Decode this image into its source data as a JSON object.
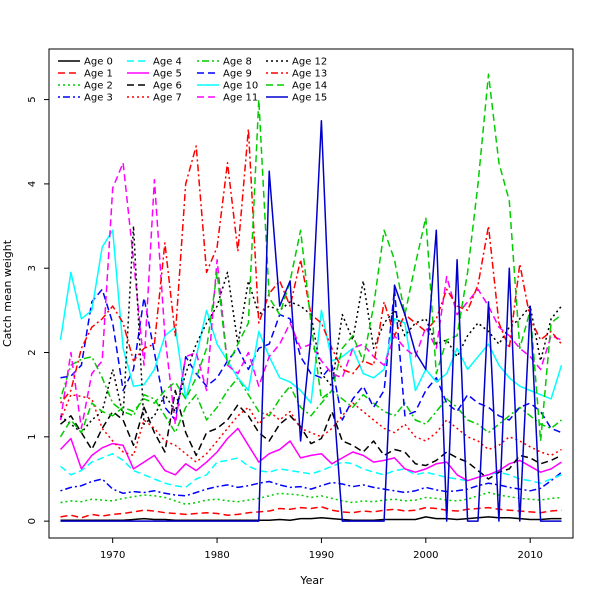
{
  "chart_data": {
    "type": "line",
    "title": "",
    "xlabel": "Year",
    "ylabel": "Catch mean weight",
    "xlim": [
      1963.9,
      2014.1
    ],
    "ylim": [
      -0.2,
      5.6
    ],
    "x_ticks": [
      1970,
      1980,
      1990,
      2000,
      2010
    ],
    "y_ticks": [
      0,
      1,
      2,
      3,
      4,
      5
    ],
    "legend_position": "top-left",
    "grid": false,
    "x": [
      1965,
      1966,
      1967,
      1968,
      1969,
      1970,
      1971,
      1972,
      1973,
      1974,
      1975,
      1976,
      1977,
      1978,
      1979,
      1980,
      1981,
      1982,
      1983,
      1984,
      1985,
      1986,
      1987,
      1988,
      1989,
      1990,
      1991,
      1992,
      1993,
      1994,
      1995,
      1996,
      1997,
      1998,
      1999,
      2000,
      2001,
      2002,
      2003,
      2004,
      2005,
      2006,
      2007,
      2008,
      2009,
      2010,
      2011,
      2012,
      2013
    ],
    "series": [
      {
        "name": "Age 0",
        "color": "#000000",
        "dash": "solid",
        "values": [
          0.01,
          0.01,
          0.01,
          0.01,
          0.01,
          0.01,
          0.01,
          0.02,
          0.03,
          0.02,
          0.02,
          0.01,
          0.01,
          0.01,
          0.01,
          0.01,
          0.01,
          0.01,
          0.01,
          0.01,
          0.01,
          0.02,
          0.01,
          0.03,
          0.03,
          0.04,
          0.03,
          0.02,
          0.01,
          0.01,
          0.01,
          0.02,
          0.02,
          0.02,
          0.02,
          0.05,
          0.03,
          0.03,
          0.02,
          0.03,
          0.04,
          0.05,
          0.04,
          0.04,
          0.03,
          0.02,
          0.02,
          0.03,
          0.03
        ]
      },
      {
        "name": "Age 1",
        "color": "#ff0000",
        "dash": "dashed",
        "values": [
          0.05,
          0.07,
          0.04,
          0.08,
          0.06,
          0.08,
          0.09,
          0.11,
          0.13,
          0.12,
          0.1,
          0.09,
          0.08,
          0.09,
          0.1,
          0.09,
          0.07,
          0.08,
          0.1,
          0.11,
          0.12,
          0.15,
          0.14,
          0.16,
          0.15,
          0.17,
          0.13,
          0.11,
          0.1,
          0.12,
          0.11,
          0.13,
          0.14,
          0.12,
          0.13,
          0.16,
          0.15,
          0.13,
          0.12,
          0.14,
          0.15,
          0.16,
          0.14,
          0.13,
          0.12,
          0.11,
          0.1,
          0.12,
          0.13
        ]
      },
      {
        "name": "Age 2",
        "color": "#00cd00",
        "dash": "dotted",
        "values": [
          0.22,
          0.24,
          0.23,
          0.26,
          0.25,
          0.24,
          0.27,
          0.29,
          0.31,
          0.3,
          0.28,
          0.24,
          0.2,
          0.22,
          0.25,
          0.26,
          0.24,
          0.23,
          0.25,
          0.27,
          0.3,
          0.33,
          0.32,
          0.31,
          0.28,
          0.3,
          0.27,
          0.24,
          0.22,
          0.24,
          0.23,
          0.25,
          0.26,
          0.24,
          0.25,
          0.28,
          0.27,
          0.25,
          0.24,
          0.26,
          0.3,
          0.34,
          0.31,
          0.29,
          0.27,
          0.26,
          0.25,
          0.27,
          0.28
        ]
      },
      {
        "name": "Age 3",
        "color": "#0000ff",
        "dash": "dashdot",
        "values": [
          0.36,
          0.4,
          0.42,
          0.47,
          0.5,
          0.38,
          0.33,
          0.35,
          0.34,
          0.36,
          0.33,
          0.31,
          0.3,
          0.34,
          0.38,
          0.41,
          0.43,
          0.4,
          0.42,
          0.45,
          0.47,
          0.43,
          0.4,
          0.41,
          0.38,
          0.42,
          0.46,
          0.44,
          0.41,
          0.43,
          0.4,
          0.38,
          0.36,
          0.34,
          0.36,
          0.4,
          0.37,
          0.35,
          0.36,
          0.38,
          0.42,
          0.45,
          0.43,
          0.4,
          0.38,
          0.36,
          0.39,
          0.48,
          0.58
        ]
      },
      {
        "name": "Age 4",
        "color": "#00ffff",
        "dash": "dashed",
        "values": [
          0.65,
          0.55,
          0.6,
          0.7,
          0.75,
          0.8,
          0.72,
          0.6,
          0.55,
          0.5,
          0.45,
          0.42,
          0.4,
          0.5,
          0.55,
          0.7,
          0.72,
          0.75,
          0.65,
          0.6,
          0.58,
          0.62,
          0.6,
          0.58,
          0.56,
          0.6,
          0.65,
          0.7,
          0.68,
          0.62,
          0.58,
          0.55,
          0.6,
          0.62,
          0.55,
          0.58,
          0.55,
          0.52,
          0.5,
          0.48,
          0.52,
          0.55,
          0.58,
          0.55,
          0.5,
          0.48,
          0.45,
          0.5,
          0.55
        ]
      },
      {
        "name": "Age 5",
        "color": "#ff00ff",
        "dash": "solid",
        "values": [
          0.85,
          0.98,
          0.62,
          0.78,
          0.87,
          0.92,
          0.9,
          0.62,
          0.7,
          0.78,
          0.6,
          0.55,
          0.68,
          0.6,
          0.7,
          0.82,
          0.98,
          1.1,
          0.9,
          0.7,
          0.8,
          0.85,
          0.95,
          0.75,
          0.78,
          0.8,
          0.68,
          0.75,
          0.82,
          0.78,
          0.7,
          0.72,
          0.75,
          0.62,
          0.58,
          0.62,
          0.68,
          0.7,
          0.55,
          0.48,
          0.52,
          0.55,
          0.6,
          0.68,
          0.72,
          0.65,
          0.58,
          0.62,
          0.7
        ]
      },
      {
        "name": "Age 6",
        "color": "#000000",
        "dash": "dashed",
        "values": [
          1.15,
          1.25,
          1.05,
          0.85,
          1.1,
          1.3,
          1.2,
          0.9,
          1.35,
          1.05,
          0.82,
          1.55,
          1.05,
          0.78,
          1.05,
          1.1,
          1.2,
          1.38,
          1.25,
          1.05,
          0.95,
          1.15,
          1.25,
          1.12,
          0.92,
          0.98,
          1.3,
          0.95,
          0.9,
          0.82,
          0.95,
          0.78,
          0.85,
          0.82,
          0.68,
          0.66,
          0.72,
          0.82,
          0.75,
          0.7,
          0.6,
          0.5,
          0.58,
          0.62,
          0.78,
          0.75,
          0.68,
          0.72,
          0.78
        ]
      },
      {
        "name": "Age 7",
        "color": "#ff0000",
        "dash": "dotted",
        "values": [
          1.2,
          1.5,
          1.48,
          1.45,
          1.1,
          0.95,
          0.82,
          0.78,
          1.2,
          1.1,
          0.95,
          0.9,
          0.8,
          0.7,
          0.8,
          0.95,
          1.1,
          1.25,
          1.35,
          1.15,
          1.3,
          1.2,
          1.3,
          1.1,
          1.05,
          1.0,
          1.1,
          1.25,
          1.4,
          1.3,
          1.2,
          1.1,
          1.05,
          1.15,
          1.0,
          0.95,
          1.05,
          1.2,
          1.1,
          1.0,
          0.95,
          0.85,
          0.9,
          1.0,
          0.95,
          0.88,
          0.82,
          0.78,
          0.85
        ]
      },
      {
        "name": "Age 8",
        "color": "#00cd00",
        "dash": "dashdot",
        "values": [
          1.45,
          1.85,
          1.92,
          1.95,
          1.7,
          1.4,
          1.3,
          1.25,
          1.5,
          1.45,
          1.25,
          1.05,
          1.35,
          1.5,
          1.2,
          1.35,
          1.55,
          1.7,
          1.5,
          1.3,
          1.25,
          1.45,
          1.6,
          1.35,
          1.25,
          1.4,
          1.55,
          1.45,
          1.35,
          1.5,
          1.4,
          1.3,
          1.25,
          1.4,
          1.2,
          1.15,
          1.3,
          1.45,
          1.35,
          1.2,
          1.15,
          1.05,
          1.15,
          1.25,
          1.35,
          1.25,
          1.15,
          1.1,
          1.2
        ]
      },
      {
        "name": "Age 9",
        "color": "#0000ff",
        "dash": "dashed",
        "values": [
          1.7,
          1.72,
          1.85,
          2.6,
          2.75,
          2.35,
          1.55,
          1.8,
          2.65,
          2.0,
          1.35,
          1.2,
          1.95,
          1.75,
          1.6,
          1.7,
          1.9,
          2.05,
          1.8,
          2.05,
          2.1,
          2.45,
          2.4,
          1.95,
          1.75,
          1.7,
          1.85,
          1.2,
          1.45,
          1.6,
          1.35,
          1.55,
          2.75,
          1.25,
          1.3,
          1.55,
          1.7,
          1.4,
          1.3,
          1.5,
          1.4,
          1.35,
          1.25,
          1.2,
          1.35,
          1.4,
          1.3,
          1.1,
          1.05
        ]
      },
      {
        "name": "Age 10",
        "color": "#00ffff",
        "dash": "solid",
        "values": [
          2.15,
          2.95,
          2.4,
          2.5,
          3.25,
          3.45,
          2.05,
          1.6,
          1.62,
          1.8,
          2.2,
          2.3,
          1.45,
          1.95,
          2.5,
          2.1,
          1.9,
          1.7,
          1.55,
          2.25,
          1.95,
          1.7,
          1.65,
          1.55,
          1.4,
          2.5,
          1.9,
          1.95,
          2.05,
          1.75,
          1.7,
          1.8,
          2.4,
          2.35,
          1.55,
          1.8,
          1.65,
          1.75,
          2.05,
          1.8,
          1.95,
          2.1,
          1.85,
          1.7,
          1.6,
          1.55,
          1.5,
          1.45,
          1.85
        ]
      },
      {
        "name": "Age 11",
        "color": "#ff00ff",
        "dash": "dashed",
        "values": [
          1.2,
          2.0,
          1.1,
          1.75,
          1.9,
          3.95,
          4.25,
          3.1,
          1.85,
          4.05,
          2.2,
          1.15,
          1.95,
          2.0,
          1.55,
          3.1,
          1.85,
          1.75,
          2.0,
          1.6,
          1.95,
          2.1,
          2.35,
          2.05,
          2.1,
          1.9,
          1.75,
          1.7,
          2.05,
          2.1,
          1.95,
          1.85,
          2.2,
          2.05,
          1.95,
          2.3,
          2.05,
          2.9,
          2.45,
          2.6,
          2.75,
          2.55,
          2.3,
          2.2,
          2.05,
          1.95,
          1.8,
          2.2,
          2.15
        ]
      },
      {
        "name": "Age 12",
        "color": "#000000",
        "dash": "dotted",
        "values": [
          1.25,
          1.15,
          1.05,
          1.2,
          1.3,
          1.8,
          1.25,
          3.5,
          1.15,
          1.25,
          1.5,
          1.3,
          1.75,
          2.1,
          2.35,
          2.55,
          2.95,
          2.1,
          2.85,
          2.45,
          2.55,
          2.5,
          2.6,
          2.55,
          2.45,
          1.75,
          1.6,
          2.45,
          2.15,
          2.85,
          2.05,
          2.35,
          2.5,
          2.2,
          2.35,
          2.4,
          2.1,
          2.15,
          1.95,
          2.2,
          2.35,
          2.25,
          2.1,
          2.3,
          2.4,
          2.55,
          1.9,
          2.4,
          2.55
        ]
      },
      {
        "name": "Age 13",
        "color": "#ff0000",
        "dash": "dashdot",
        "values": [
          1.4,
          1.55,
          2.05,
          2.3,
          2.4,
          2.55,
          2.35,
          1.9,
          2.05,
          2.1,
          3.3,
          2.2,
          4.0,
          4.45,
          2.95,
          3.25,
          4.25,
          3.2,
          4.65,
          2.35,
          2.7,
          2.85,
          2.55,
          3.1,
          2.45,
          2.35,
          2.05,
          1.8,
          1.75,
          1.9,
          1.85,
          2.6,
          2.2,
          2.45,
          2.35,
          2.25,
          2.4,
          2.75,
          2.55,
          2.5,
          2.8,
          3.5,
          2.35,
          2.05,
          3.05,
          2.4,
          2.15,
          2.25,
          2.1
        ]
      },
      {
        "name": "Age 14",
        "color": "#00cd00",
        "dash": "dashed",
        "values": [
          1.0,
          1.2,
          1.05,
          1.4,
          1.3,
          1.25,
          1.35,
          1.3,
          1.45,
          1.4,
          1.55,
          1.65,
          1.45,
          1.7,
          2.05,
          2.95,
          1.85,
          2.1,
          2.35,
          5.0,
          2.65,
          2.45,
          2.85,
          3.45,
          2.35,
          1.45,
          1.55,
          2.05,
          2.2,
          1.9,
          2.55,
          3.45,
          3.1,
          2.45,
          3.05,
          3.6,
          1.75,
          2.15,
          2.2,
          2.95,
          4.0,
          5.3,
          4.25,
          3.8,
          2.05,
          2.5,
          0.95,
          2.35,
          2.45
        ]
      },
      {
        "name": "Age 15",
        "color": "#0000cd",
        "dash": "solid",
        "values": [
          0.0,
          0.0,
          0.0,
          0.0,
          0.0,
          0.0,
          0.0,
          0.0,
          0.0,
          0.0,
          0.0,
          0.0,
          0.0,
          0.0,
          0.0,
          0.0,
          0.0,
          0.0,
          0.0,
          0.0,
          4.15,
          2.55,
          2.85,
          0.95,
          2.2,
          4.75,
          1.7,
          0.0,
          0.0,
          0.0,
          0.0,
          0.0,
          2.8,
          2.45,
          2.0,
          1.8,
          3.45,
          0.0,
          3.1,
          0.0,
          0.0,
          2.6,
          0.0,
          3.0,
          0.0,
          2.55,
          0.0,
          0.0,
          0.0
        ]
      }
    ]
  }
}
